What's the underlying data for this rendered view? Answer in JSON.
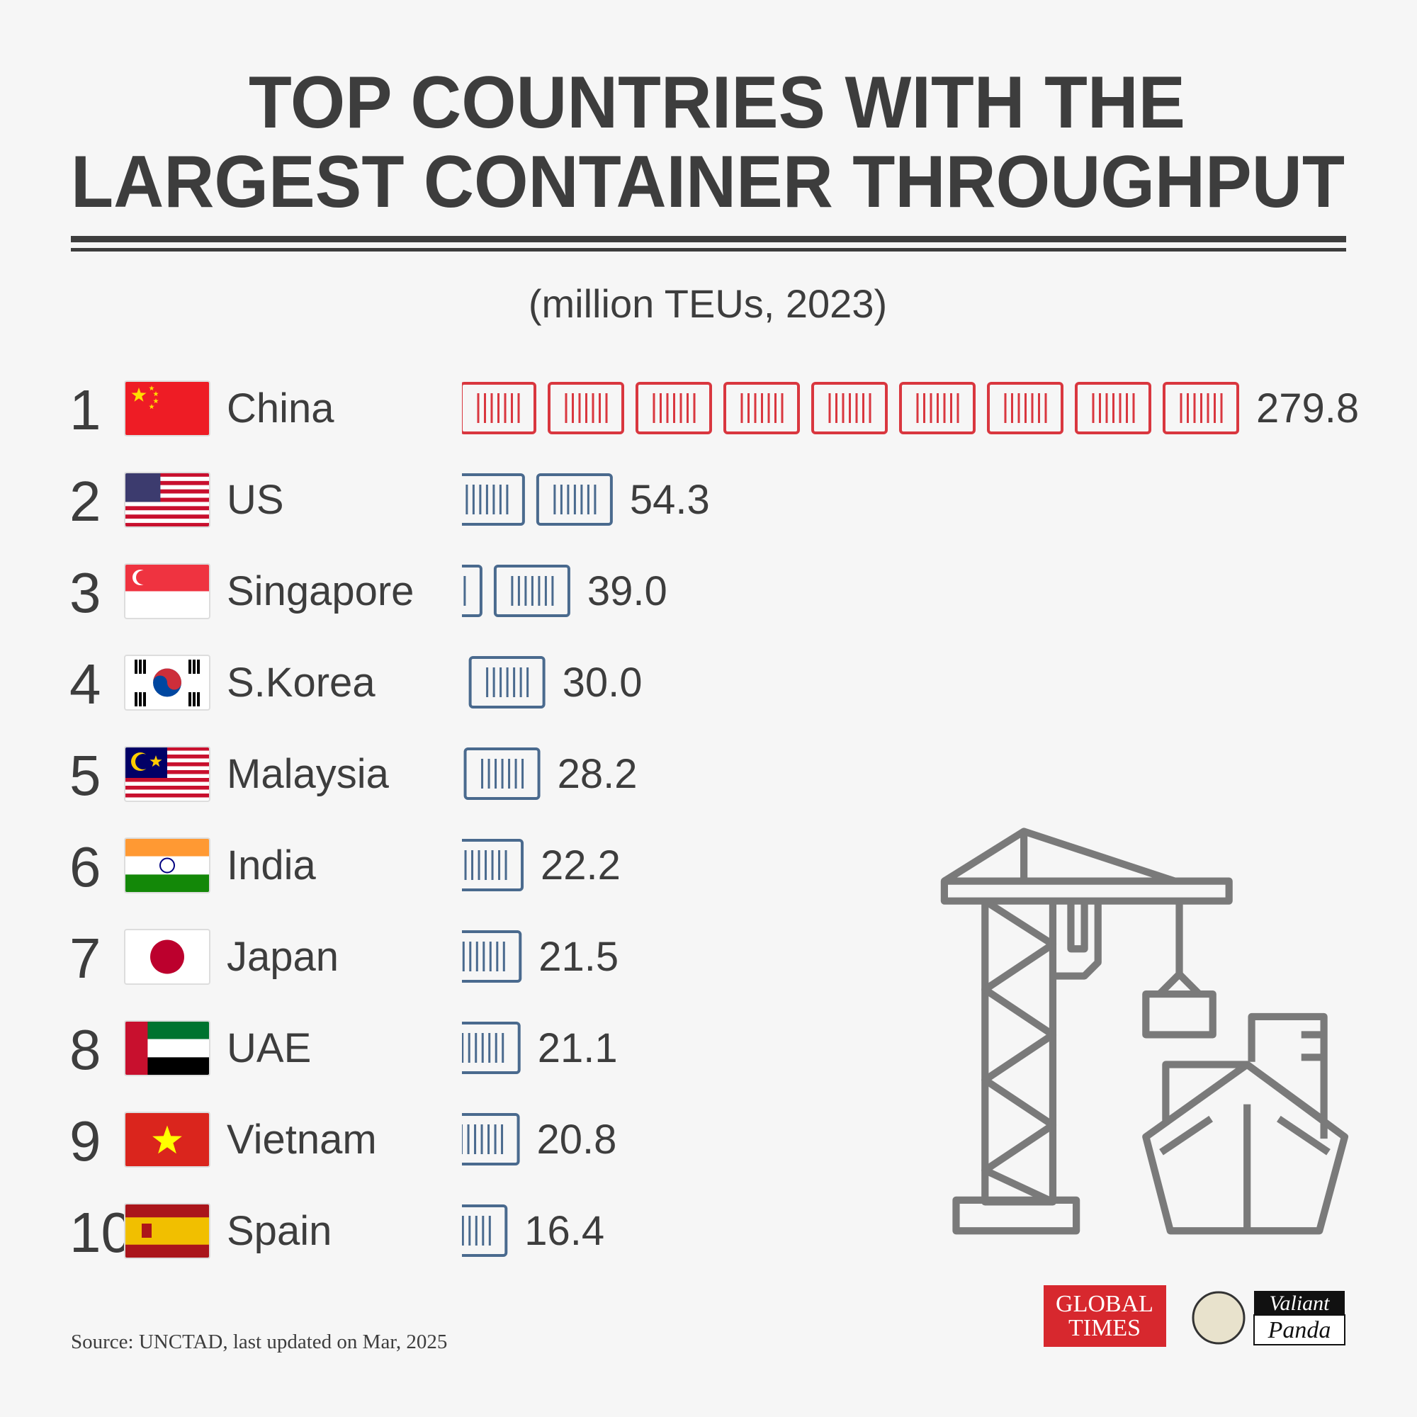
{
  "chart_data": {
    "type": "pictorial_bar",
    "title": [
      "TOP COUNTRIES WITH THE",
      "LARGEST CONTAINER THROUGHPUT"
    ],
    "subtitle": "(million TEUs, 2023)",
    "ranks": [
      1,
      2,
      3,
      4,
      5,
      6,
      7,
      8,
      9,
      10
    ],
    "categories": [
      "China",
      "US",
      "Singapore",
      "S.Korea",
      "Malaysia",
      "India",
      "Japan",
      "UAE",
      "Vietnam",
      "Spain"
    ],
    "values": [
      279.8,
      54.3,
      39.0,
      30.0,
      28.2,
      22.2,
      21.5,
      21.1,
      20.8,
      16.4
    ],
    "value_labels": [
      "279.8",
      "54.3",
      "39.0",
      "30.0",
      "28.2",
      "22.2",
      "21.5",
      "21.1",
      "20.8",
      "16.4"
    ],
    "colors": [
      "#d9373f",
      "#4a6a8e",
      "#4a6a8e",
      "#4a6a8e",
      "#4a6a8e",
      "#4a6a8e",
      "#4a6a8e",
      "#4a6a8e",
      "#4a6a8e",
      "#4a6a8e"
    ],
    "source": "Source: UNCTAD, last updated on Mar, 2025",
    "logos": {
      "global_times": [
        "GLOBAL",
        "TIMES"
      ],
      "panda": [
        "Valiant",
        "Panda"
      ]
    }
  }
}
